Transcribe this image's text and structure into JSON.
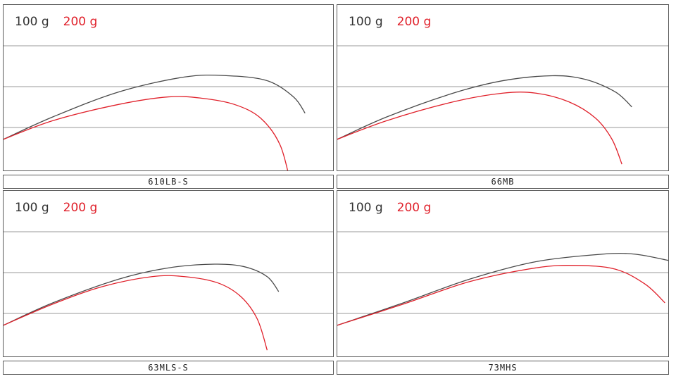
{
  "legend": {
    "w100": "100 g",
    "w200": "200 g"
  },
  "colors": {
    "w100": "#4a4a4a",
    "w200": "#e0202a",
    "grid": "#9a9a9a"
  },
  "chart_data": [
    {
      "type": "line",
      "name": "610LB-S",
      "series": [
        {
          "name": "100 g",
          "points": [
            [
              0,
              0.25
            ],
            [
              0.15,
              0.43
            ],
            [
              0.35,
              0.63
            ],
            [
              0.55,
              0.75
            ],
            [
              0.68,
              0.76
            ],
            [
              0.8,
              0.72
            ],
            [
              0.88,
              0.59
            ],
            [
              0.915,
              0.46
            ]
          ]
        },
        {
          "name": "200 g",
          "points": [
            [
              0,
              0.25
            ],
            [
              0.15,
              0.4
            ],
            [
              0.35,
              0.53
            ],
            [
              0.5,
              0.59
            ],
            [
              0.6,
              0.58
            ],
            [
              0.7,
              0.53
            ],
            [
              0.78,
              0.42
            ],
            [
              0.84,
              0.2
            ],
            [
              0.875,
              -0.15
            ]
          ]
        }
      ]
    },
    {
      "type": "line",
      "name": "66MB",
      "series": [
        {
          "name": "100 g",
          "points": [
            [
              0,
              0.25
            ],
            [
              0.15,
              0.43
            ],
            [
              0.35,
              0.62
            ],
            [
              0.5,
              0.72
            ],
            [
              0.65,
              0.76
            ],
            [
              0.75,
              0.73
            ],
            [
              0.84,
              0.63
            ],
            [
              0.89,
              0.51
            ]
          ]
        },
        {
          "name": "200 g",
          "points": [
            [
              0,
              0.25
            ],
            [
              0.15,
              0.4
            ],
            [
              0.35,
              0.55
            ],
            [
              0.5,
              0.62
            ],
            [
              0.6,
              0.62
            ],
            [
              0.7,
              0.55
            ],
            [
              0.78,
              0.42
            ],
            [
              0.83,
              0.25
            ],
            [
              0.86,
              0.05
            ]
          ]
        }
      ]
    },
    {
      "type": "line",
      "name": "63MLS-S",
      "series": [
        {
          "name": "100 g",
          "points": [
            [
              0,
              0.25
            ],
            [
              0.15,
              0.43
            ],
            [
              0.35,
              0.62
            ],
            [
              0.5,
              0.71
            ],
            [
              0.64,
              0.74
            ],
            [
              0.73,
              0.72
            ],
            [
              0.8,
              0.64
            ],
            [
              0.835,
              0.52
            ]
          ]
        },
        {
          "name": "200 g",
          "points": [
            [
              0,
              0.25
            ],
            [
              0.15,
              0.42
            ],
            [
              0.3,
              0.56
            ],
            [
              0.45,
              0.64
            ],
            [
              0.55,
              0.64
            ],
            [
              0.65,
              0.59
            ],
            [
              0.72,
              0.48
            ],
            [
              0.77,
              0.3
            ],
            [
              0.8,
              0.05
            ]
          ]
        }
      ]
    },
    {
      "type": "line",
      "name": "73MHS",
      "series": [
        {
          "name": "100 g",
          "points": [
            [
              0,
              0.25
            ],
            [
              0.2,
              0.43
            ],
            [
              0.4,
              0.62
            ],
            [
              0.6,
              0.76
            ],
            [
              0.8,
              0.82
            ],
            [
              0.9,
              0.82
            ],
            [
              1.0,
              0.77
            ]
          ]
        },
        {
          "name": "200 g",
          "points": [
            [
              0,
              0.25
            ],
            [
              0.2,
              0.42
            ],
            [
              0.4,
              0.6
            ],
            [
              0.6,
              0.71
            ],
            [
              0.72,
              0.73
            ],
            [
              0.84,
              0.7
            ],
            [
              0.93,
              0.58
            ],
            [
              0.99,
              0.43
            ]
          ]
        }
      ]
    }
  ]
}
